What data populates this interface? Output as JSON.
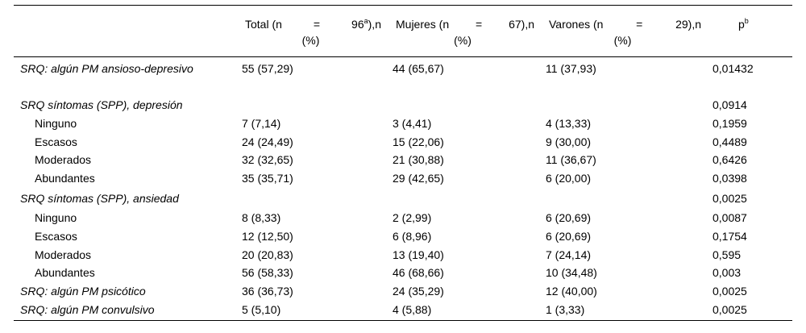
{
  "header": {
    "col0": "",
    "total": {
      "a": "Total (n",
      "eq": "=",
      "n": "96",
      "sup": "a",
      "b": "),n",
      "c": "(%)"
    },
    "mujeres": {
      "a": "Mujeres (n",
      "eq": "=",
      "n": "67),n",
      "c": "(%)"
    },
    "varones": {
      "a": "Varones (n",
      "eq": "=",
      "n": "29),n",
      "c": "(%)"
    },
    "p": {
      "base": "p",
      "sup": "b"
    }
  },
  "rows": [
    {
      "label": "SRQ: algún PM ansioso-depresivo",
      "total": "55 (57,29)",
      "mujeres": "44 (65,67)",
      "varones": "11 (37,93)",
      "p": "0,01432"
    },
    {
      "label": "SRQ síntomas (SPP), depresión",
      "total": "",
      "mujeres": "",
      "varones": "",
      "p": "0,0914"
    },
    {
      "label": "Ninguno",
      "total": "7 (7,14)",
      "mujeres": "3 (4,41)",
      "varones": "4 (13,33)",
      "p": "0,1959"
    },
    {
      "label": "Escasos",
      "total": "24 (24,49)",
      "mujeres": "15 (22,06)",
      "varones": "9 (30,00)",
      "p": "0,4489"
    },
    {
      "label": "Moderados",
      "total": "32 (32,65)",
      "mujeres": "21 (30,88)",
      "varones": "11 (36,67)",
      "p": "0,6426"
    },
    {
      "label": "Abundantes",
      "total": "35 (35,71)",
      "mujeres": "29 (42,65)",
      "varones": "6 (20,00)",
      "p": "0,0398"
    },
    {
      "label": "SRQ síntomas (SPP), ansiedad",
      "total": "",
      "mujeres": "",
      "varones": "",
      "p": "0,0025"
    },
    {
      "label": "Ninguno",
      "total": "8 (8,33)",
      "mujeres": "2 (2,99)",
      "varones": "6 (20,69)",
      "p": "0,0087"
    },
    {
      "label": "Escasos",
      "total": "12 (12,50)",
      "mujeres": "6 (8,96)",
      "varones": "6 (20,69)",
      "p": "0,1754"
    },
    {
      "label": "Moderados",
      "total": "20 (20,83)",
      "mujeres": "13 (19,40)",
      "varones": "7 (24,14)",
      "p": "0,595"
    },
    {
      "label": "Abundantes",
      "total": "56 (58,33)",
      "mujeres": "46 (68,66)",
      "varones": "10 (34,48)",
      "p": "0,003"
    },
    {
      "label": "SRQ: algún PM psicótico",
      "total": "36 (36,73)",
      "mujeres": "24 (35,29)",
      "varones": "12 (40,00)",
      "p": "0,0025"
    },
    {
      "label": "SRQ: algún PM convulsivo",
      "total": "5 (5,10)",
      "mujeres": "4 (5,88)",
      "varones": "1 (3,33)",
      "p": "0,0025"
    }
  ]
}
